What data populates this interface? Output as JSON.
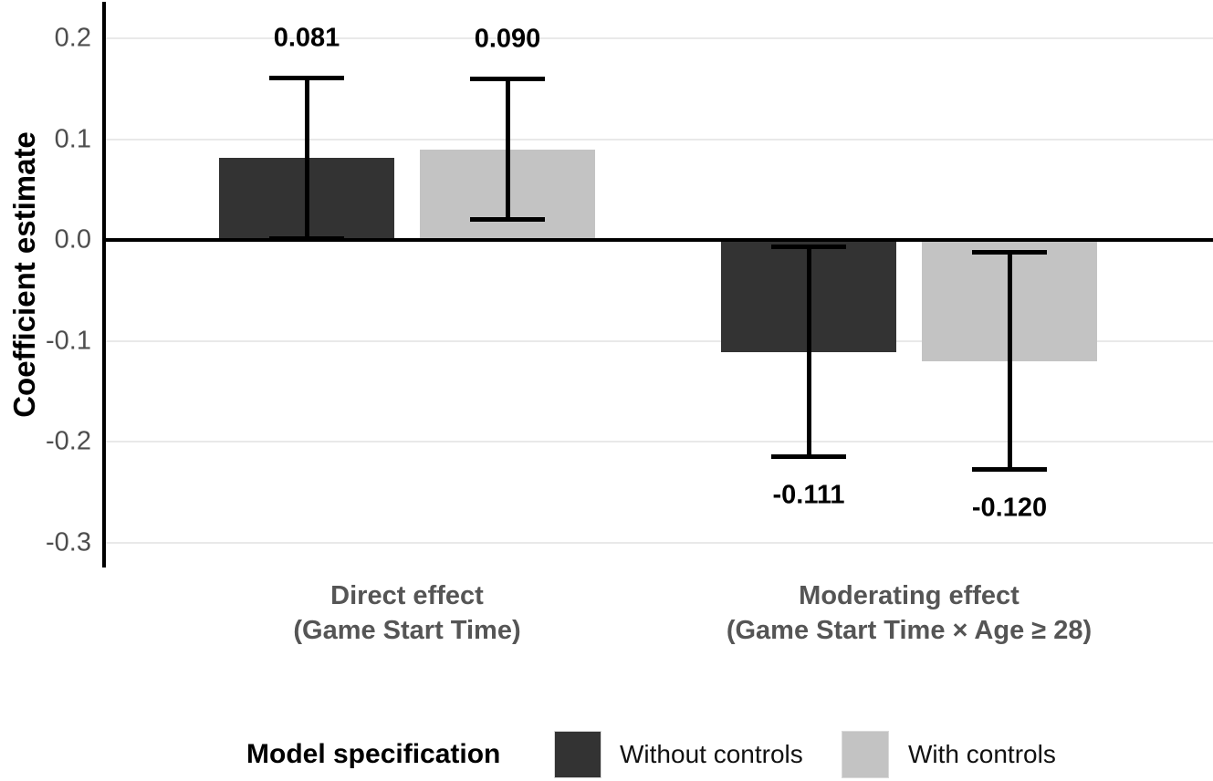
{
  "chart_data": {
    "type": "bar",
    "title": "",
    "xlabel": "",
    "ylabel": "Coefficient estimate",
    "ylim": [
      -0.33,
      0.235
    ],
    "yticks": [
      0.2,
      0.1,
      0.0,
      -0.1,
      -0.2,
      -0.3
    ],
    "ytick_labels": [
      "0.2",
      "0.1",
      "0.0",
      "-0.1",
      "-0.2",
      "-0.3"
    ],
    "grid": "horizontal",
    "zero_line": true,
    "categories": [
      [
        "Direct effect",
        "(Game Start Time)"
      ],
      [
        "Moderating effect",
        "(Game Start Time × Age ≥ 28)"
      ]
    ],
    "series": [
      {
        "name": "Without controls",
        "color": "#333333",
        "values": [
          0.081,
          -0.111
        ],
        "value_labels": [
          "0.081",
          "-0.111"
        ],
        "ci_low": [
          0.001,
          -0.215
        ],
        "ci_high": [
          0.161,
          -0.007
        ]
      },
      {
        "name": "With controls",
        "color": "#c3c3c3",
        "values": [
          0.09,
          -0.12
        ],
        "value_labels": [
          "0.090",
          "-0.120"
        ],
        "ci_low": [
          0.02,
          -0.228
        ],
        "ci_high": [
          0.16,
          -0.012
        ]
      }
    ],
    "legend": {
      "title": "Model specification",
      "position": "bottom"
    }
  },
  "colors": {
    "background": "#ffffff",
    "grid": "#e9e9e9",
    "axis_line": "#000000",
    "error_bar": "#000000",
    "tick_label": "#4d4d4d",
    "category_label": "#555555",
    "bar_without_controls": "#333333",
    "bar_with_controls": "#c3c3c3"
  }
}
